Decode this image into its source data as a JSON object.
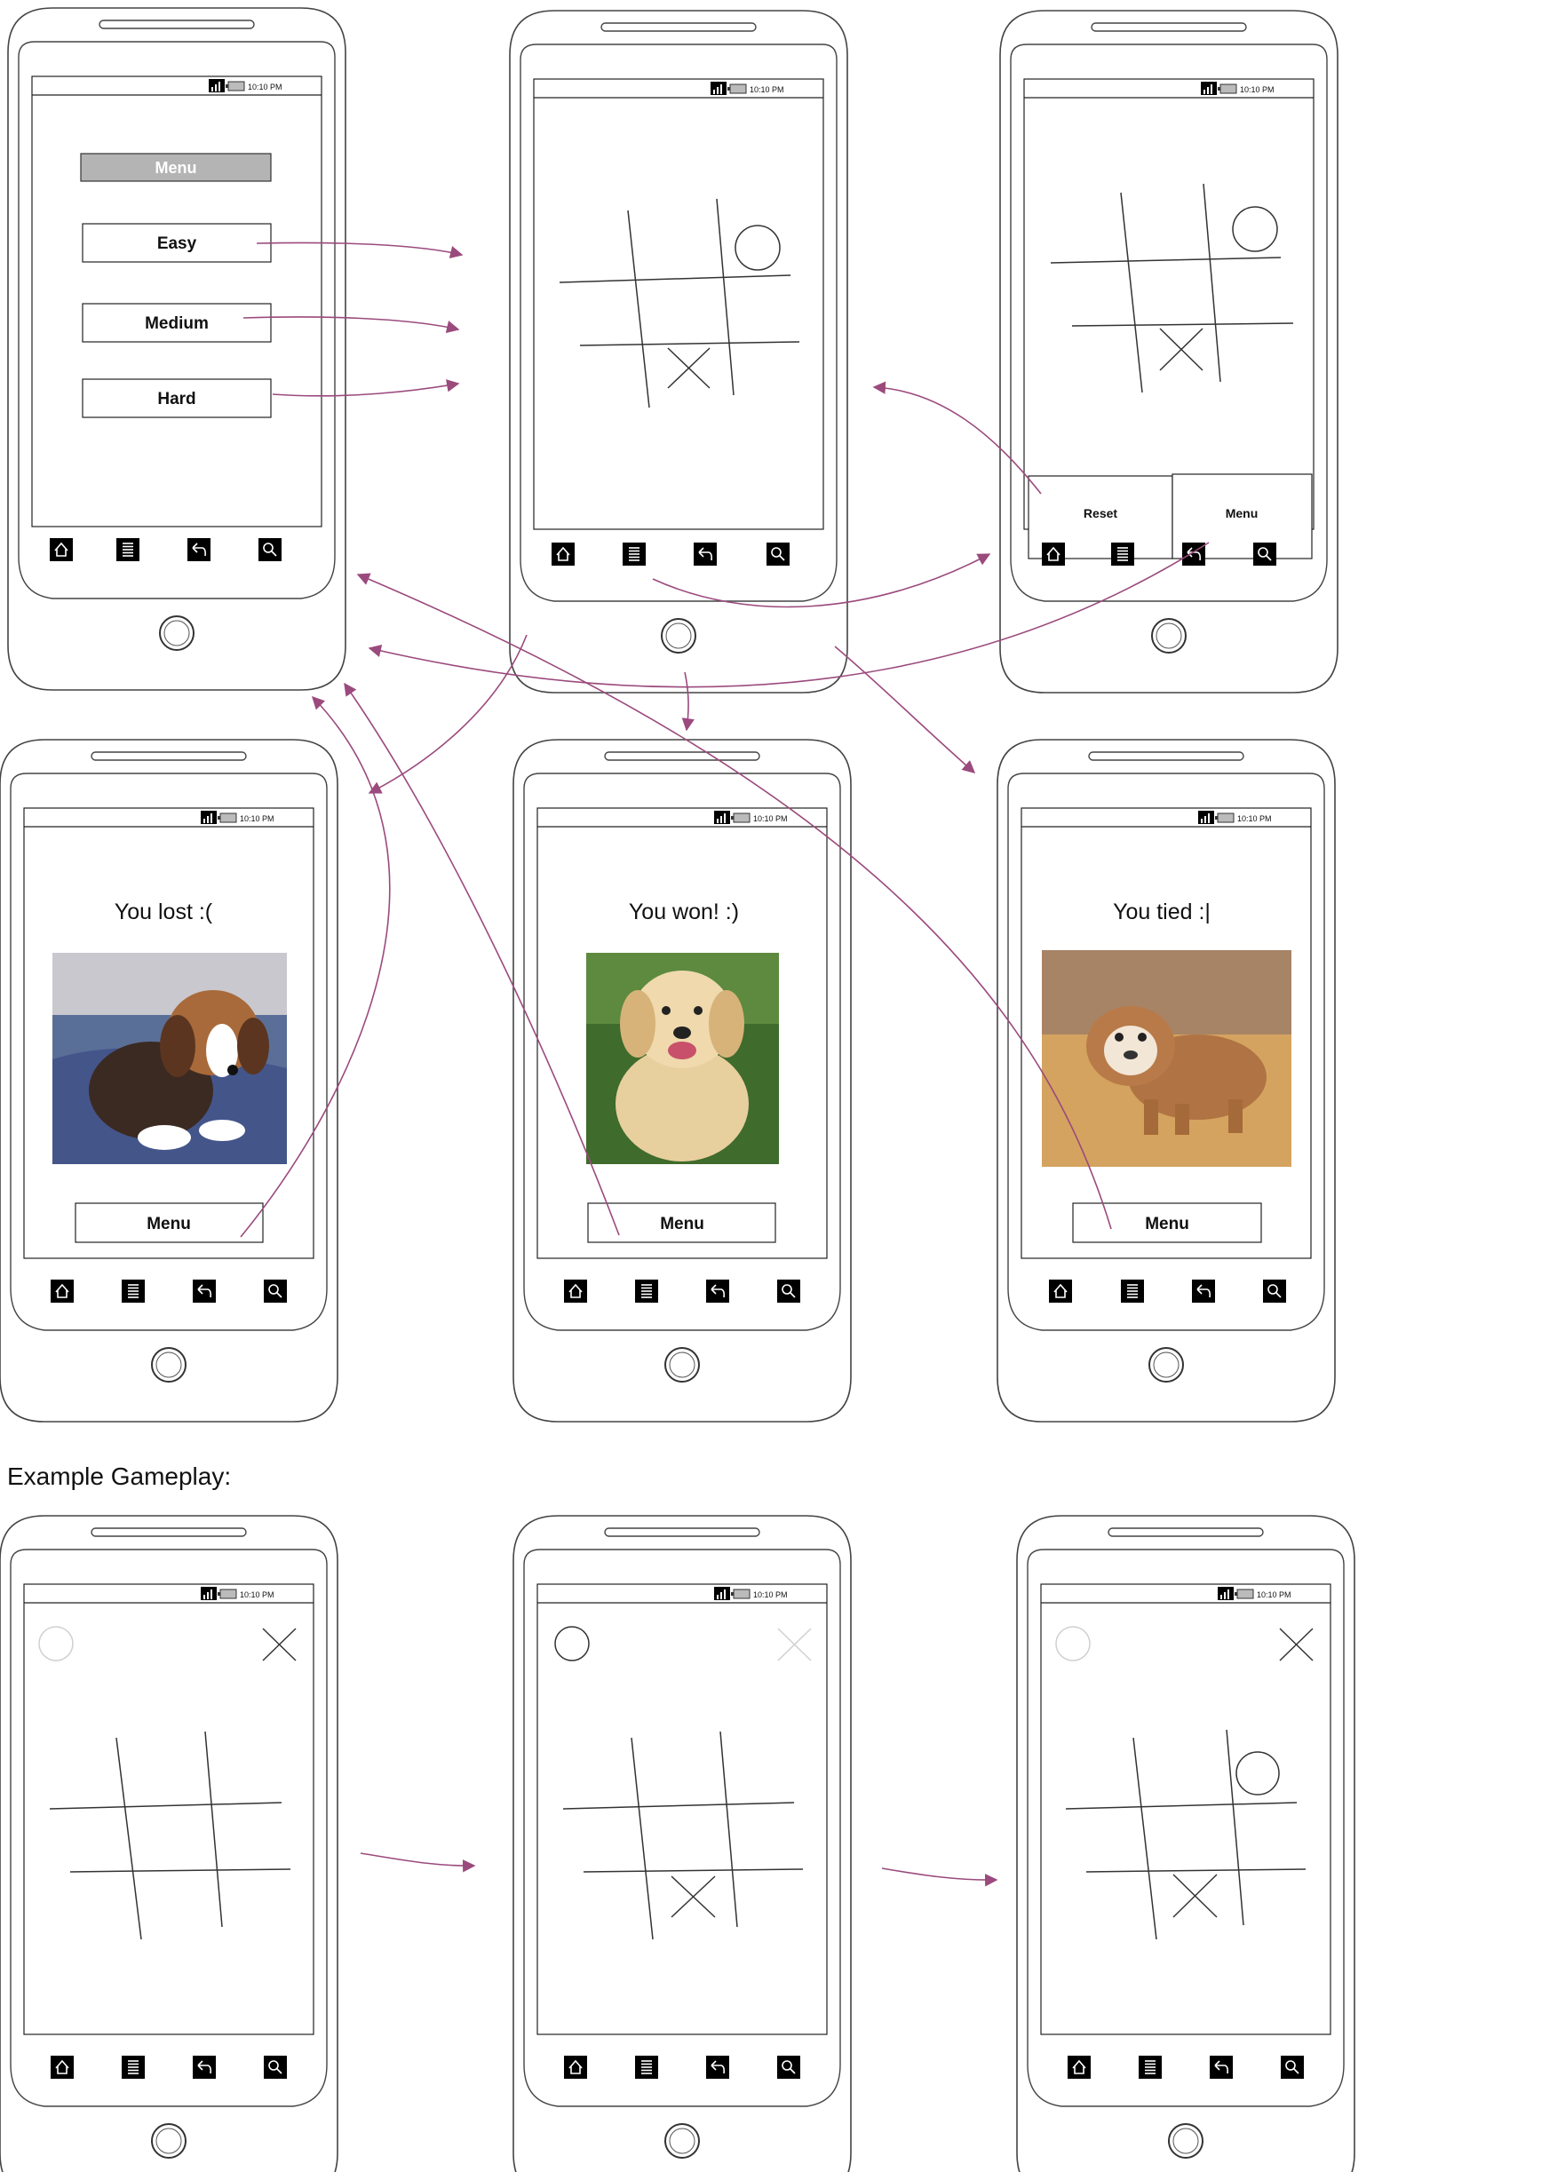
{
  "status_bar": {
    "time": "10:10 PM"
  },
  "nav_bar": {
    "icons": [
      "home-icon",
      "menu-list-icon",
      "back-icon",
      "search-icon"
    ]
  },
  "start_screen": {
    "menu_header": "Menu",
    "buttons": [
      "Easy",
      "Medium",
      "Hard"
    ]
  },
  "game_screen_with_menu": {
    "reset_label": "Reset",
    "menu_label": "Menu"
  },
  "result_screens": {
    "lost": {
      "message": "You lost :(",
      "menu_label": "Menu",
      "picture": "beagle-puppy"
    },
    "won": {
      "message": "You won! :)",
      "menu_label": "Menu",
      "picture": "golden-retriever-puppy"
    },
    "tied": {
      "message": "You tied :|",
      "menu_label": "Menu",
      "picture": "bulldog-puppy"
    }
  },
  "example_section": {
    "title": "Example Gameplay:"
  },
  "colors": {
    "flow_arrows": "#9b4a7d",
    "menu_header_fill": "#b4b4b4",
    "outline": "#444444"
  }
}
